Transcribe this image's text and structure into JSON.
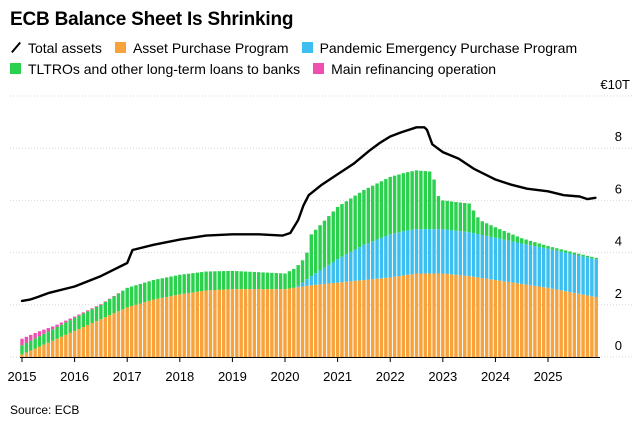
{
  "chart_data": {
    "type": "area",
    "title": "ECB Balance Sheet Is Shrinking",
    "ylabel": "€10T",
    "ylim": [
      0,
      10
    ],
    "y_ticks": [
      0,
      2,
      4,
      6,
      8
    ],
    "y_tick_labels": [
      "0",
      "2",
      "4",
      "6",
      "8"
    ],
    "y_unit_label": "€10T",
    "x_tick_labels": [
      "2015",
      "2016",
      "2017",
      "2018",
      "2019",
      "2020",
      "2021",
      "2022",
      "2023",
      "2024",
      "2025"
    ],
    "x_range": [
      2015,
      2025.95
    ],
    "source": "Source: ECB",
    "legend": [
      {
        "key": "total",
        "label": "Total assets",
        "color": "#000000",
        "style": "line"
      },
      {
        "key": "app",
        "label": "Asset Purchase Program",
        "color": "#f7a23b",
        "style": "bar"
      },
      {
        "key": "pepp",
        "label": "Pandemic Emergency Purchase Program",
        "color": "#3cbff0",
        "style": "bar"
      },
      {
        "key": "tltro",
        "label": "TLTROs and other long-term loans to banks",
        "color": "#2bd14d",
        "style": "bar"
      },
      {
        "key": "mro",
        "label": "Main refinancing operation",
        "color": "#ef4fb0",
        "style": "bar"
      }
    ],
    "series": [
      {
        "name": "Asset Purchase Program",
        "key": "app",
        "x": [
          2015.0,
          2015.5,
          2016.0,
          2016.5,
          2017.0,
          2017.5,
          2018.0,
          2018.5,
          2019.0,
          2020.0,
          2020.5,
          2021.0,
          2022.0,
          2022.5,
          2023.0,
          2023.5,
          2024.0,
          2024.5,
          2025.0,
          2025.9
        ],
        "values": [
          0.1,
          0.55,
          1.0,
          1.45,
          1.9,
          2.2,
          2.4,
          2.55,
          2.6,
          2.6,
          2.75,
          2.85,
          3.05,
          3.2,
          3.2,
          3.1,
          2.95,
          2.8,
          2.65,
          2.3
        ]
      },
      {
        "name": "Pandemic Emergency Purchase Program",
        "key": "pepp",
        "x": [
          2015.0,
          2020.2,
          2020.5,
          2021.0,
          2021.5,
          2022.0,
          2022.3,
          2023.0,
          2023.5,
          2024.0,
          2024.5,
          2025.0,
          2025.9
        ],
        "values": [
          0,
          0,
          0.35,
          0.9,
          1.35,
          1.65,
          1.7,
          1.7,
          1.68,
          1.62,
          1.55,
          1.5,
          1.45
        ]
      },
      {
        "name": "TLTROs and other long-term loans to banks",
        "key": "tltro",
        "x": [
          2015.0,
          2016.0,
          2016.5,
          2017.0,
          2018.0,
          2019.0,
          2020.0,
          2020.4,
          2020.5,
          2021.0,
          2021.5,
          2022.0,
          2022.5,
          2022.8,
          2022.9,
          2023.0,
          2023.5,
          2023.7,
          2024.0,
          2024.5,
          2025.0,
          2025.9
        ],
        "values": [
          0.35,
          0.5,
          0.55,
          0.75,
          0.75,
          0.7,
          0.6,
          0.9,
          1.6,
          2.0,
          2.1,
          2.2,
          2.25,
          2.2,
          1.3,
          1.1,
          1.1,
          0.55,
          0.4,
          0.2,
          0.1,
          0.05
        ]
      },
      {
        "name": "Main refinancing operation",
        "key": "mro",
        "x": [
          2015.0,
          2015.3,
          2015.6,
          2016.0,
          2017.0,
          2025.9
        ],
        "values": [
          0.25,
          0.2,
          0.1,
          0.05,
          0.0,
          0.0
        ]
      },
      {
        "name": "Total assets",
        "key": "total",
        "x": [
          2015.0,
          2015.15,
          2015.3,
          2015.5,
          2016.0,
          2016.5,
          2017.0,
          2017.1,
          2017.5,
          2018.0,
          2018.5,
          2019.0,
          2019.5,
          2019.95,
          2020.1,
          2020.25,
          2020.35,
          2020.45,
          2020.7,
          2021.0,
          2021.3,
          2021.6,
          2021.8,
          2022.0,
          2022.2,
          2022.5,
          2022.65,
          2022.7,
          2022.8,
          2023.0,
          2023.3,
          2023.6,
          2023.9,
          2024.0,
          2024.3,
          2024.6,
          2025.0,
          2025.3,
          2025.6,
          2025.75,
          2025.9
        ],
        "values": [
          2.15,
          2.2,
          2.3,
          2.45,
          2.7,
          3.1,
          3.6,
          4.1,
          4.3,
          4.5,
          4.65,
          4.7,
          4.7,
          4.65,
          4.75,
          5.25,
          5.8,
          6.2,
          6.6,
          7.0,
          7.4,
          7.9,
          8.2,
          8.45,
          8.6,
          8.8,
          8.8,
          8.7,
          8.15,
          7.85,
          7.6,
          7.2,
          6.9,
          6.8,
          6.6,
          6.45,
          6.35,
          6.2,
          6.15,
          6.05,
          6.1
        ]
      }
    ]
  }
}
